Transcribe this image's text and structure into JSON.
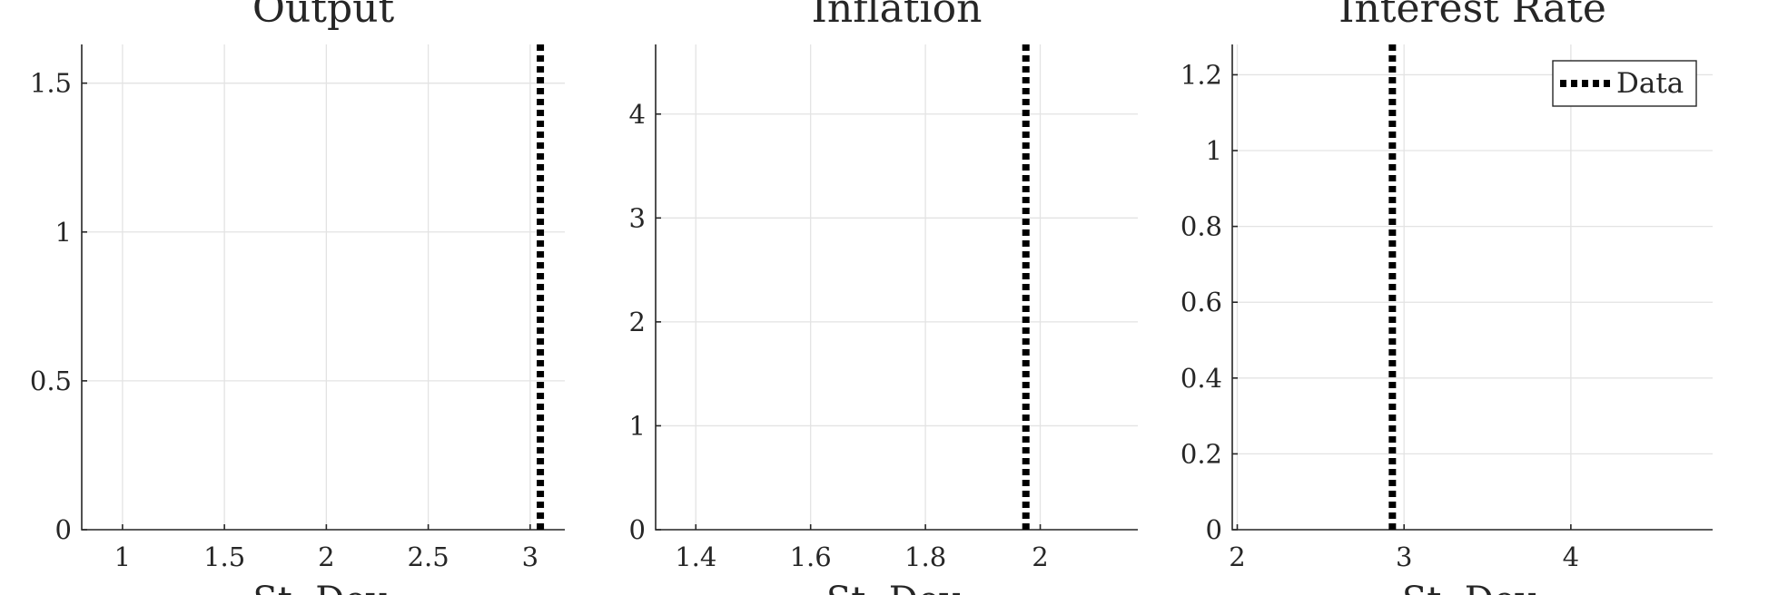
{
  "chart_data": [
    {
      "type": "line",
      "title": "Output",
      "xlabel": "St. Dev.",
      "ylabel": "",
      "xlim": [
        0.8,
        3.17
      ],
      "ylim": [
        0,
        1.63
      ],
      "xticks": [
        1,
        1.5,
        2,
        2.5,
        3
      ],
      "xtick_labels": [
        "1",
        "1.5",
        "2",
        "2.5",
        "3"
      ],
      "yticks": [
        0,
        0.5,
        1,
        1.5
      ],
      "ytick_labels": [
        "0",
        "0.5",
        "1",
        "1.5"
      ],
      "grid": true,
      "series": [
        {
          "name": "Data",
          "style": "dotted-vertical",
          "x": [
            3.05,
            3.05
          ],
          "y": [
            0,
            1.63
          ]
        }
      ]
    },
    {
      "type": "line",
      "title": "Inflation",
      "xlabel": "St. Dev.",
      "ylabel": "",
      "xlim": [
        1.33,
        2.17
      ],
      "ylim": [
        0,
        4.67
      ],
      "xticks": [
        1.4,
        1.6,
        1.8,
        2
      ],
      "xtick_labels": [
        "1.4",
        "1.6",
        "1.8",
        "2"
      ],
      "yticks": [
        0,
        1,
        2,
        3,
        4
      ],
      "ytick_labels": [
        "0",
        "1",
        "2",
        "3",
        "4"
      ],
      "grid": true,
      "series": [
        {
          "name": "Data",
          "style": "dotted-vertical",
          "x": [
            1.975,
            1.975
          ],
          "y": [
            0,
            4.67
          ]
        }
      ]
    },
    {
      "type": "line",
      "title": "Interest Rate",
      "xlabel": "St. Dev.",
      "ylabel": "",
      "xlim": [
        1.97,
        4.85
      ],
      "ylim": [
        0,
        1.28
      ],
      "xticks": [
        2,
        3,
        4
      ],
      "xtick_labels": [
        "2",
        "3",
        "4"
      ],
      "yticks": [
        0,
        0.2,
        0.4,
        0.6,
        0.8,
        1,
        1.2
      ],
      "ytick_labels": [
        "0",
        "0.2",
        "0.4",
        "0.6",
        "0.8",
        "1",
        "1.2"
      ],
      "grid": true,
      "legend": {
        "placement": "top-right",
        "entries": [
          "Data"
        ]
      },
      "series": [
        {
          "name": "Data",
          "style": "dotted-vertical",
          "x": [
            2.93,
            2.93
          ],
          "y": [
            0,
            1.28
          ]
        }
      ]
    }
  ]
}
